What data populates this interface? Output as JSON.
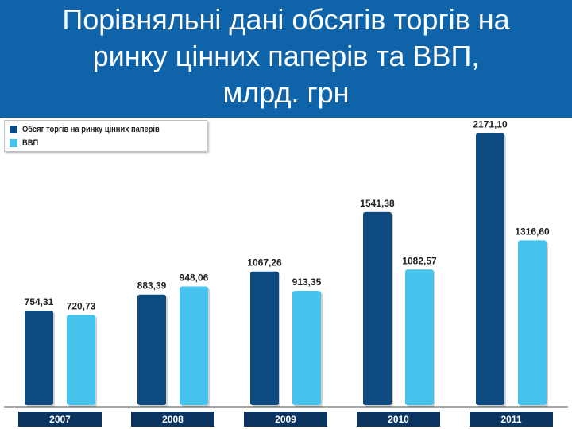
{
  "header": {
    "title_lines": [
      "Порівняльні дані обсягів торгів на",
      "ринку цінних паперів та ВВП,",
      "млрд. грн"
    ]
  },
  "colors": {
    "header_bg": "#0f64a9",
    "series_dark": "#0d4a80",
    "series_light": "#45c3ec",
    "year_bar": "#0b3560"
  },
  "chart_data": {
    "type": "bar",
    "categories": [
      "2007",
      "2008",
      "2009",
      "2010",
      "2011"
    ],
    "series": [
      {
        "name": "Обсяг торгів на ринку цінних паперів",
        "values": [
          754.31,
          883.39,
          1067.26,
          1541.38,
          2171.1
        ],
        "labels": [
          "754,31",
          "883,39",
          "1067,26",
          "1541,38",
          "2171,10"
        ]
      },
      {
        "name": "ВВП",
        "values": [
          720.73,
          948.06,
          913.35,
          1082.57,
          1316.6
        ],
        "labels": [
          "720,73",
          "948,06",
          "913,35",
          "1082,57",
          "1316,60"
        ]
      }
    ],
    "legend_position": "top-left",
    "grid": false,
    "ylim": [
      0,
      2300
    ]
  }
}
